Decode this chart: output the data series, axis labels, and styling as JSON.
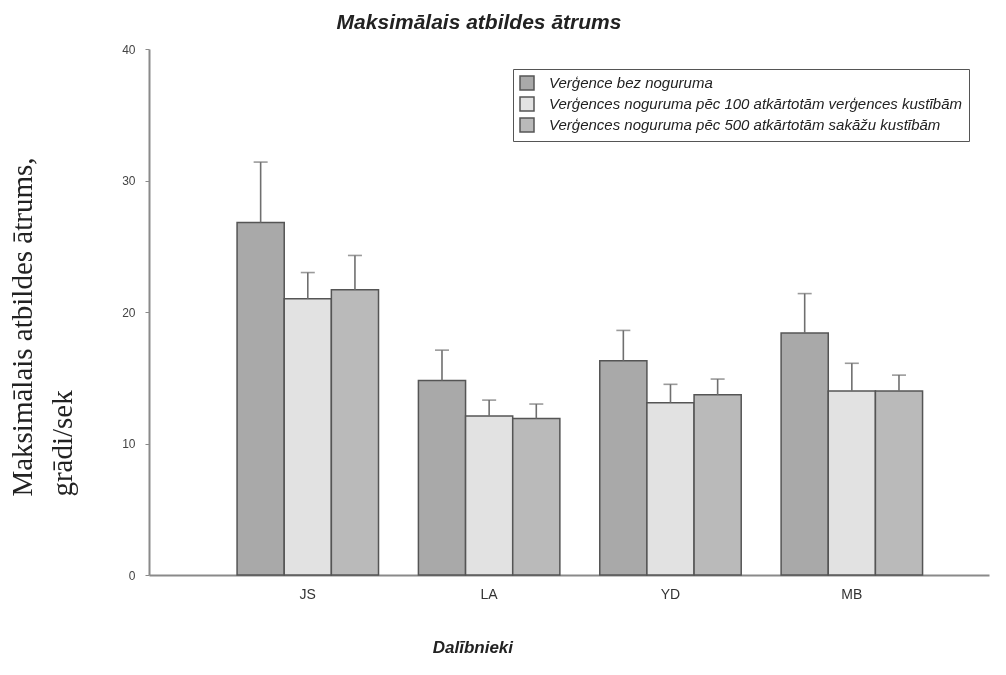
{
  "chart_data": {
    "type": "bar",
    "title": "Maksimālais atbildes ātrums",
    "xlabel": "Dalībnieki",
    "ylabel": "Maksimālais atbildes ātrums,\ngrādi/sek",
    "categories": [
      "JS",
      "LA",
      "YD",
      "MB"
    ],
    "series": [
      {
        "name": "Verģence bez noguruma",
        "color": "#a9a9a9",
        "values": [
          26.8,
          14.8,
          16.3,
          18.4
        ],
        "errors": [
          [
            26.8,
            31.4
          ],
          [
            14.8,
            17.1
          ],
          [
            16.3,
            18.6
          ],
          [
            18.4,
            21.4
          ]
        ]
      },
      {
        "name": "Verģences noguruma pēc 100 atkārtotām verģences kustībām",
        "color": "#e2e2e2",
        "values": [
          21.0,
          12.1,
          13.1,
          14.0
        ],
        "errors": [
          [
            21.0,
            23.0
          ],
          [
            12.1,
            13.3
          ],
          [
            13.1,
            14.5
          ],
          [
            14.0,
            16.1
          ]
        ]
      },
      {
        "name": "Verģences noguruma pēc 500 atkārtotām sakāžu kustībām",
        "color": "#bababa",
        "values": [
          21.7,
          11.9,
          13.7,
          14.0
        ],
        "errors": [
          [
            21.7,
            24.3
          ],
          [
            11.9,
            13.0
          ],
          [
            13.7,
            14.9
          ],
          [
            14.0,
            15.2
          ]
        ]
      }
    ],
    "ylim": [
      0,
      40
    ],
    "yticks": [
      0,
      10,
      20,
      30,
      40
    ],
    "grid": false,
    "legend": "top right"
  }
}
